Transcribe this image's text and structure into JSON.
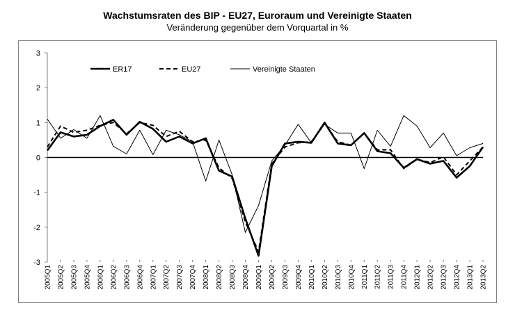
{
  "chart_data": {
    "type": "line",
    "title": "Wachstumsraten des BIP - EU27, Euroraum und Vereinigte Staaten",
    "subtitle": "Veränderung gegenüber dem Vorquartal in %",
    "xlabel": "",
    "ylabel": "",
    "ylim": [
      -3,
      3
    ],
    "yticks": [
      3,
      2,
      1,
      0,
      -1,
      -2,
      -3
    ],
    "grid": false,
    "legend_position": "top-left",
    "categories": [
      "2005Q1",
      "2005Q2",
      "2005Q3",
      "2005Q4",
      "2006Q1",
      "2006Q2",
      "2006Q3",
      "2006Q4",
      "2007Q1",
      "2007Q2",
      "2007Q3",
      "2007Q4",
      "2008Q1",
      "2008Q2",
      "2008Q3",
      "2008Q4",
      "2009Q1",
      "2009Q2",
      "2009Q3",
      "2009Q4",
      "2010Q1",
      "2010Q2",
      "2010Q3",
      "2010Q4",
      "2011Q1",
      "2011Q2",
      "2011Q3",
      "2011Q4",
      "2012Q1",
      "2012Q2",
      "2012Q3",
      "2012Q4",
      "2013Q1",
      "2013Q2"
    ],
    "series": [
      {
        "name": "ER17",
        "style": "thick",
        "color": "#000000",
        "values": [
          0.2,
          0.72,
          0.6,
          0.65,
          0.9,
          1.08,
          0.65,
          1.02,
          0.82,
          0.45,
          0.6,
          0.4,
          0.55,
          -0.38,
          -0.55,
          -1.75,
          -2.82,
          -0.25,
          0.4,
          0.45,
          0.42,
          1.0,
          0.4,
          0.35,
          0.7,
          0.18,
          0.12,
          -0.3,
          -0.05,
          -0.18,
          -0.1,
          -0.58,
          -0.25,
          0.3
        ]
      },
      {
        "name": "EU27",
        "style": "dashed",
        "color": "#000000",
        "values": [
          0.3,
          0.9,
          0.72,
          0.78,
          0.92,
          1.0,
          0.68,
          1.0,
          0.92,
          0.6,
          0.75,
          0.45,
          0.5,
          -0.3,
          -0.6,
          -1.85,
          -2.7,
          -0.18,
          0.3,
          0.42,
          0.45,
          0.98,
          0.45,
          0.35,
          0.7,
          0.22,
          0.22,
          -0.32,
          -0.05,
          -0.15,
          0.02,
          -0.5,
          -0.1,
          0.3
        ]
      },
      {
        "name": "Vereinigte Staaten",
        "style": "thin",
        "color": "#000000",
        "values": [
          1.1,
          0.55,
          0.8,
          0.55,
          1.2,
          0.32,
          0.1,
          0.78,
          0.08,
          0.78,
          0.65,
          0.45,
          -0.68,
          0.5,
          -0.5,
          -2.15,
          -1.38,
          -0.1,
          0.35,
          0.95,
          0.42,
          0.95,
          0.7,
          0.7,
          -0.32,
          0.78,
          0.32,
          1.2,
          0.9,
          0.28,
          0.7,
          0.05,
          0.28,
          0.4
        ]
      }
    ]
  }
}
